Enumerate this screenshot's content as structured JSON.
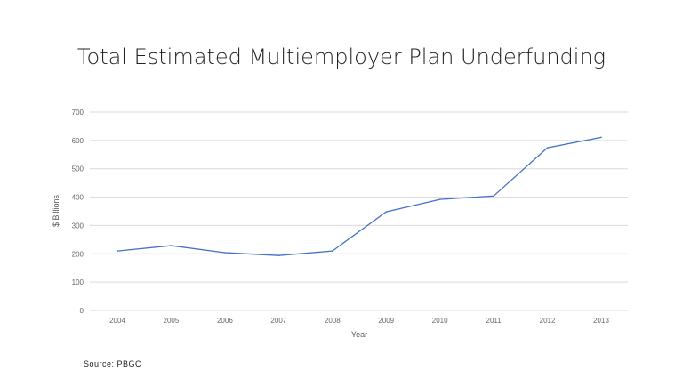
{
  "chart_data": {
    "type": "line",
    "title": "Total Estimated Multiemployer Plan Underfunding",
    "xlabel": "Year",
    "ylabel": "$ Billions",
    "categories": [
      "2004",
      "2005",
      "2006",
      "2007",
      "2008",
      "2009",
      "2010",
      "2011",
      "2012",
      "2013"
    ],
    "series": [
      {
        "values": [
          210,
          229,
          204,
          194,
          210,
          348,
          392,
          404,
          574,
          611
        ],
        "color": "#4472c4"
      }
    ],
    "ylim": [
      0,
      700
    ],
    "yticks": [
      0,
      100,
      200,
      300,
      400,
      500,
      600,
      700
    ],
    "grid": true,
    "legend": "none"
  },
  "source": "Source: PBGC"
}
